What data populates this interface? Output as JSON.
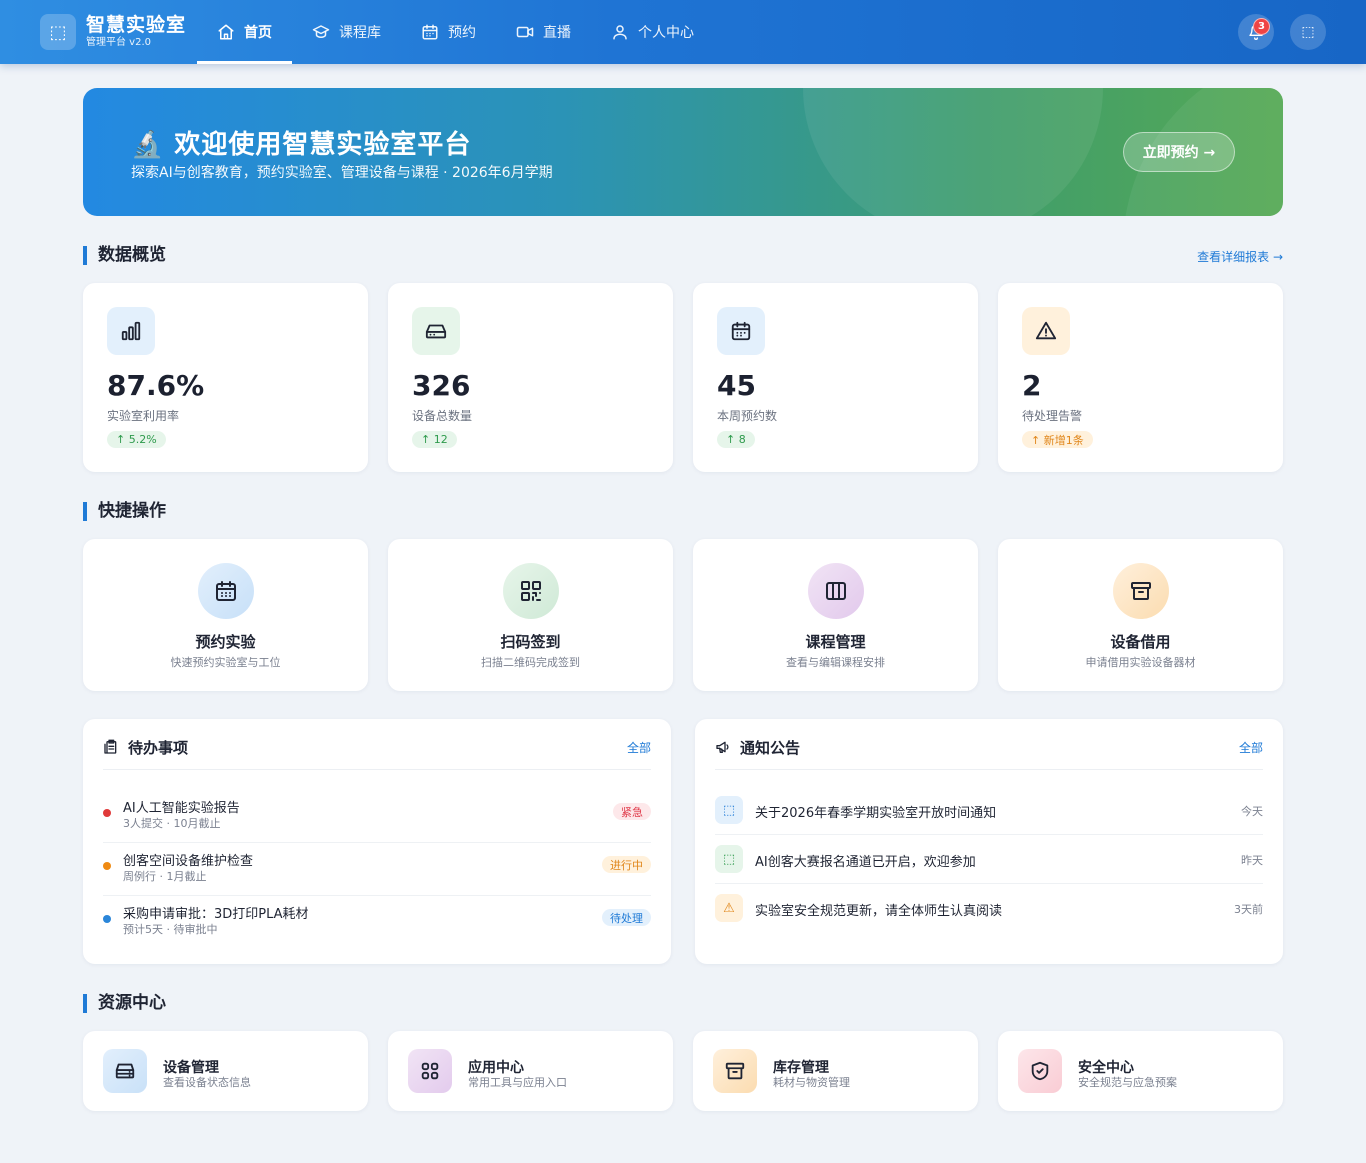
{
  "header": {
    "brand_title": "智慧实验室",
    "brand_subtitle": "管理平台 v2.0",
    "brand_logo_glyph": "⬚",
    "nav": [
      {
        "label": "首页",
        "icon": "home-icon",
        "active": true
      },
      {
        "label": "课程库",
        "icon": "graduation-cap-icon",
        "active": false
      },
      {
        "label": "预约",
        "icon": "calendar-icon",
        "active": false
      },
      {
        "label": "直播",
        "icon": "video-icon",
        "active": false
      },
      {
        "label": "个人中心",
        "icon": "user-icon",
        "active": false
      }
    ],
    "notification_count": "3",
    "avatar_glyph": "⬚"
  },
  "banner": {
    "title": "🔬 欢迎使用智慧实验室平台",
    "subtitle": "探索AI与创客教育，预约实验室、管理设备与课程 · 2026年6月学期",
    "button_label": "立即预约 →"
  },
  "stats_section": {
    "title": "数据概览",
    "link_label": "查看详细报表 →",
    "cards": [
      {
        "value": "87.6%",
        "label": "实验室利用率",
        "trend": "↑ 5.2%",
        "icon": "bar-chart-icon",
        "trend_color": "green"
      },
      {
        "value": "326",
        "label": "设备总数量",
        "trend": "↑ 12",
        "icon": "hard-drive-icon",
        "trend_color": "green"
      },
      {
        "value": "45",
        "label": "本周预约数",
        "trend": "↑ 8",
        "icon": "calendar-icon",
        "trend_color": "green"
      },
      {
        "value": "2",
        "label": "待处理告警",
        "trend": "↑ 新增1条",
        "icon": "alert-triangle-icon",
        "trend_color": "orange"
      }
    ]
  },
  "quick_section": {
    "title": "快捷操作",
    "items": [
      {
        "title": "预约实验",
        "desc": "快速预约实验室与工位",
        "icon": "calendar-icon"
      },
      {
        "title": "扫码签到",
        "desc": "扫描二维码完成签到",
        "icon": "qr-code-icon"
      },
      {
        "title": "课程管理",
        "desc": "查看与编辑课程安排",
        "icon": "columns-icon"
      },
      {
        "title": "设备借用",
        "desc": "申请借用实验设备器材",
        "icon": "archive-icon"
      }
    ]
  },
  "tasks_panel": {
    "title": "待办事项",
    "more_label": "全部",
    "items": [
      {
        "title": "AI人工智能实验报告",
        "meta": "3人提交 · 10月截止",
        "tag": "紧急",
        "dot": "#e03a3a",
        "tag_style": "red"
      },
      {
        "title": "创客空间设备维护检查",
        "meta": "周例行 · 1月截止",
        "tag": "进行中",
        "dot": "#ef8a12",
        "tag_style": "orange"
      },
      {
        "title": "采购申请审批：3D打印PLA耗材",
        "meta": "预计5天 · 待审批中",
        "tag": "待处理",
        "dot": "#2b86d9",
        "tag_style": "blue"
      }
    ]
  },
  "notice_panel": {
    "title": "通知公告",
    "more_label": "全部",
    "items": [
      {
        "glyph": "⬚",
        "text": "关于2026年春季学期实验室开放时间通知",
        "time": "今天",
        "bg": "#e3f0fc",
        "fg": "#1f7ad6"
      },
      {
        "glyph": "⬚",
        "text": "AI创客大赛报名通道已开启，欢迎参加",
        "time": "昨天",
        "bg": "#e6f5ea",
        "fg": "#2e9a4c"
      },
      {
        "glyph": "⚠",
        "text": "实验室安全规范更新，请全体师生认真阅读",
        "time": "3天前",
        "bg": "#fff1dc",
        "fg": "#e0861a"
      }
    ]
  },
  "resource_section": {
    "title": "资源中心",
    "items": [
      {
        "title": "设备管理",
        "desc": "查看设备状态信息",
        "icon": "server-icon"
      },
      {
        "title": "应用中心",
        "desc": "常用工具与应用入口",
        "icon": "grid-icon"
      },
      {
        "title": "库存管理",
        "desc": "耗材与物资管理",
        "icon": "archive-icon"
      },
      {
        "title": "安全中心",
        "desc": "安全规范与应急预案",
        "icon": "shield-check-icon"
      }
    ]
  },
  "colors": {
    "primary": "#1f7ad6",
    "header_start": "#2f8ee2",
    "header_end": "#1766c6",
    "banner_start": "#2389e2",
    "banner_end": "#56a955",
    "page_bg": "#eff3f8"
  }
}
